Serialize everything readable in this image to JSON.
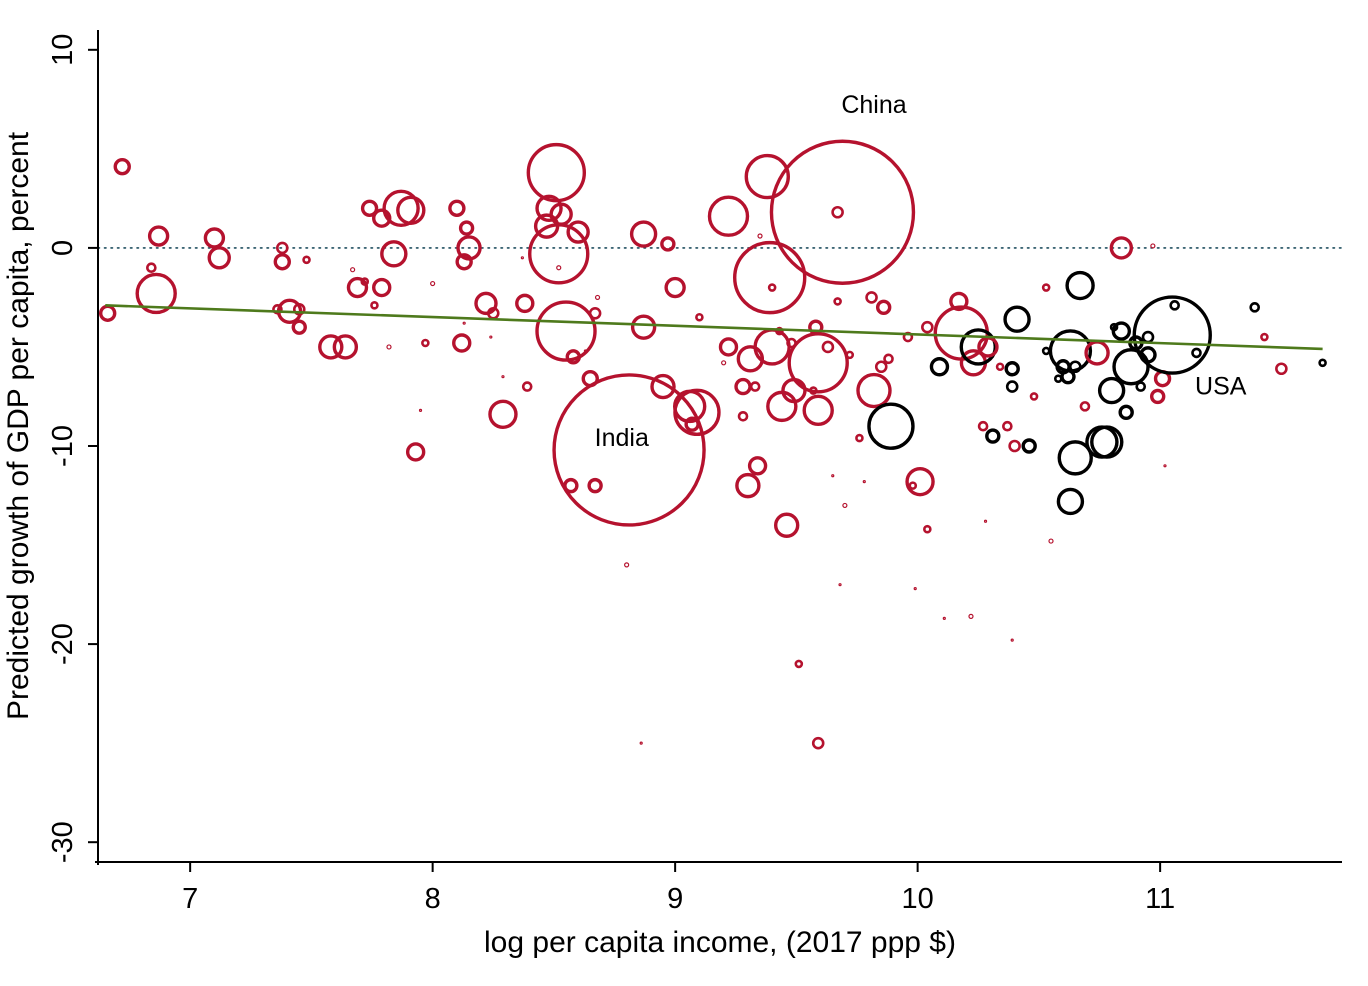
{
  "chart_data": {
    "type": "scatter",
    "xlabel": "log per capita income, (2017 ppp $)",
    "ylabel": "Predicted growth of GDP per capita, percent",
    "xlim": [
      6.62,
      11.75
    ],
    "ylim": [
      -31,
      11
    ],
    "xticks": [
      7,
      8,
      9,
      10,
      11
    ],
    "yticks": [
      10,
      0,
      -10,
      -20,
      -30
    ],
    "reference_line": {
      "y": 0,
      "style": "dotted",
      "color": "#1f4e5f"
    },
    "fit_line": {
      "color": "#4e7a1c",
      "from": {
        "x": 6.65,
        "y": -2.9
      },
      "to": {
        "x": 11.67,
        "y": -5.1
      }
    },
    "annotations": [
      {
        "text": "China",
        "x": 9.82,
        "y": 6.8
      },
      {
        "text": "India",
        "x": 8.78,
        "y": -10.0
      },
      {
        "text": "USA",
        "x": 11.25,
        "y": -7.4
      }
    ],
    "series_colors": {
      "red": "#b5122e",
      "black": "#000000"
    },
    "points": [
      {
        "x": 6.72,
        "y": 4.1,
        "s": 7,
        "c": "red"
      },
      {
        "x": 6.66,
        "y": -3.3,
        "s": 7,
        "c": "red"
      },
      {
        "x": 6.84,
        "y": -1.0,
        "s": 4,
        "c": "red"
      },
      {
        "x": 6.87,
        "y": 0.6,
        "s": 9,
        "c": "red"
      },
      {
        "x": 6.86,
        "y": -2.3,
        "s": 19,
        "c": "red"
      },
      {
        "x": 7.1,
        "y": 0.5,
        "s": 9,
        "c": "red"
      },
      {
        "x": 7.12,
        "y": -0.5,
        "s": 10,
        "c": "red"
      },
      {
        "x": 7.36,
        "y": -3.1,
        "s": 4,
        "c": "red"
      },
      {
        "x": 7.38,
        "y": 0.0,
        "s": 5,
        "c": "red"
      },
      {
        "x": 7.38,
        "y": -0.7,
        "s": 7,
        "c": "red"
      },
      {
        "x": 7.41,
        "y": -3.2,
        "s": 11,
        "c": "red"
      },
      {
        "x": 7.45,
        "y": -3.1,
        "s": 5,
        "c": "red"
      },
      {
        "x": 7.45,
        "y": -4.0,
        "s": 6,
        "c": "red"
      },
      {
        "x": 7.48,
        "y": -0.6,
        "s": 3,
        "c": "red"
      },
      {
        "x": 7.58,
        "y": -5.0,
        "s": 11,
        "c": "red"
      },
      {
        "x": 7.64,
        "y": -5.0,
        "s": 11,
        "c": "red"
      },
      {
        "x": 7.67,
        "y": -1.1,
        "s": 2,
        "c": "red"
      },
      {
        "x": 7.69,
        "y": -2.0,
        "s": 9,
        "c": "red"
      },
      {
        "x": 7.72,
        "y": -1.7,
        "s": 3,
        "c": "red"
      },
      {
        "x": 7.74,
        "y": 2.0,
        "s": 7,
        "c": "red"
      },
      {
        "x": 7.76,
        "y": -2.9,
        "s": 3,
        "c": "red"
      },
      {
        "x": 7.79,
        "y": 1.5,
        "s": 8,
        "c": "red"
      },
      {
        "x": 7.79,
        "y": -2.0,
        "s": 8,
        "c": "red"
      },
      {
        "x": 7.82,
        "y": -5.0,
        "s": 2,
        "c": "red"
      },
      {
        "x": 7.84,
        "y": -0.3,
        "s": 12,
        "c": "red"
      },
      {
        "x": 7.87,
        "y": 2.0,
        "s": 17,
        "c": "red"
      },
      {
        "x": 7.91,
        "y": 1.9,
        "s": 13,
        "c": "red"
      },
      {
        "x": 7.93,
        "y": -10.3,
        "s": 8,
        "c": "red"
      },
      {
        "x": 7.95,
        "y": -8.2,
        "s": 1,
        "c": "red"
      },
      {
        "x": 7.97,
        "y": -4.8,
        "s": 3,
        "c": "red"
      },
      {
        "x": 8.0,
        "y": -1.8,
        "s": 2,
        "c": "red"
      },
      {
        "x": 8.1,
        "y": 2.0,
        "s": 7,
        "c": "red"
      },
      {
        "x": 8.12,
        "y": -4.8,
        "s": 8,
        "c": "red"
      },
      {
        "x": 8.13,
        "y": -0.7,
        "s": 7,
        "c": "red"
      },
      {
        "x": 8.13,
        "y": -3.8,
        "s": 1,
        "c": "red"
      },
      {
        "x": 8.14,
        "y": 1.0,
        "s": 6,
        "c": "red"
      },
      {
        "x": 8.15,
        "y": 0.0,
        "s": 11,
        "c": "red"
      },
      {
        "x": 8.22,
        "y": -2.8,
        "s": 10,
        "c": "red"
      },
      {
        "x": 8.24,
        "y": -4.5,
        "s": 1,
        "c": "red"
      },
      {
        "x": 8.25,
        "y": -3.3,
        "s": 5,
        "c": "red"
      },
      {
        "x": 8.29,
        "y": -8.4,
        "s": 13,
        "c": "red"
      },
      {
        "x": 8.29,
        "y": -6.5,
        "s": 1,
        "c": "red"
      },
      {
        "x": 8.37,
        "y": -0.5,
        "s": 1,
        "c": "red"
      },
      {
        "x": 8.38,
        "y": -2.8,
        "s": 8,
        "c": "red"
      },
      {
        "x": 8.39,
        "y": -7.0,
        "s": 4,
        "c": "red"
      },
      {
        "x": 8.47,
        "y": 1.1,
        "s": 11,
        "c": "red"
      },
      {
        "x": 8.48,
        "y": 2.0,
        "s": 12,
        "c": "red"
      },
      {
        "x": 8.51,
        "y": 3.8,
        "s": 28,
        "c": "red"
      },
      {
        "x": 8.52,
        "y": -1.0,
        "s": 2,
        "c": "red"
      },
      {
        "x": 8.52,
        "y": -0.3,
        "s": 29,
        "c": "red"
      },
      {
        "x": 8.53,
        "y": 1.7,
        "s": 10,
        "c": "red"
      },
      {
        "x": 8.55,
        "y": -4.2,
        "s": 29,
        "c": "red"
      },
      {
        "x": 8.57,
        "y": -12.0,
        "s": 6,
        "c": "red"
      },
      {
        "x": 8.58,
        "y": -5.5,
        "s": 6,
        "c": "red"
      },
      {
        "x": 8.6,
        "y": 0.8,
        "s": 10,
        "c": "red"
      },
      {
        "x": 8.63,
        "y": -5.2,
        "s": 1,
        "c": "red"
      },
      {
        "x": 8.65,
        "y": -6.6,
        "s": 7,
        "c": "red"
      },
      {
        "x": 8.67,
        "y": -3.3,
        "s": 5,
        "c": "red"
      },
      {
        "x": 8.67,
        "y": -12.0,
        "s": 6,
        "c": "red"
      },
      {
        "x": 8.68,
        "y": -2.5,
        "s": 2,
        "c": "red"
      },
      {
        "x": 8.81,
        "y": -10.2,
        "s": 75,
        "c": "red"
      },
      {
        "x": 8.8,
        "y": -16.0,
        "s": 2,
        "c": "red"
      },
      {
        "x": 8.86,
        "y": -25.0,
        "s": 1,
        "c": "red"
      },
      {
        "x": 8.87,
        "y": 0.7,
        "s": 12,
        "c": "red"
      },
      {
        "x": 8.87,
        "y": -4.0,
        "s": 11,
        "c": "red"
      },
      {
        "x": 8.95,
        "y": -7.0,
        "s": 11,
        "c": "red"
      },
      {
        "x": 8.97,
        "y": 0.2,
        "s": 6,
        "c": "red"
      },
      {
        "x": 9.0,
        "y": -2.0,
        "s": 9,
        "c": "red"
      },
      {
        "x": 9.06,
        "y": -8.0,
        "s": 15,
        "c": "red"
      },
      {
        "x": 9.07,
        "y": -8.9,
        "s": 6,
        "c": "red"
      },
      {
        "x": 9.09,
        "y": -8.3,
        "s": 22,
        "c": "red"
      },
      {
        "x": 9.1,
        "y": -3.5,
        "s": 3,
        "c": "red"
      },
      {
        "x": 9.22,
        "y": 1.6,
        "s": 19,
        "c": "red"
      },
      {
        "x": 9.22,
        "y": -5.0,
        "s": 8,
        "c": "red"
      },
      {
        "x": 9.2,
        "y": -5.8,
        "s": 2,
        "c": "red"
      },
      {
        "x": 9.28,
        "y": -7.0,
        "s": 7,
        "c": "red"
      },
      {
        "x": 9.28,
        "y": -8.5,
        "s": 4,
        "c": "red"
      },
      {
        "x": 9.3,
        "y": -12.0,
        "s": 11,
        "c": "red"
      },
      {
        "x": 9.31,
        "y": -5.6,
        "s": 12,
        "c": "red"
      },
      {
        "x": 9.33,
        "y": -7.0,
        "s": 4,
        "c": "red"
      },
      {
        "x": 9.34,
        "y": -11.0,
        "s": 8,
        "c": "red"
      },
      {
        "x": 9.35,
        "y": 0.6,
        "s": 2,
        "c": "red"
      },
      {
        "x": 9.38,
        "y": 3.6,
        "s": 21,
        "c": "red"
      },
      {
        "x": 9.39,
        "y": -1.5,
        "s": 35,
        "c": "red"
      },
      {
        "x": 9.4,
        "y": -2.0,
        "s": 3,
        "c": "red"
      },
      {
        "x": 9.4,
        "y": -5.0,
        "s": 17,
        "c": "red"
      },
      {
        "x": 9.43,
        "y": -4.2,
        "s": 3,
        "c": "red"
      },
      {
        "x": 9.44,
        "y": -8.0,
        "s": 14,
        "c": "red"
      },
      {
        "x": 9.46,
        "y": -14.0,
        "s": 11,
        "c": "red"
      },
      {
        "x": 9.48,
        "y": -4.8,
        "s": 4,
        "c": "red"
      },
      {
        "x": 9.49,
        "y": -7.2,
        "s": 11,
        "c": "red"
      },
      {
        "x": 9.51,
        "y": -21.0,
        "s": 3,
        "c": "red"
      },
      {
        "x": 9.57,
        "y": -7.2,
        "s": 3,
        "c": "red"
      },
      {
        "x": 9.58,
        "y": -4.0,
        "s": 6,
        "c": "red"
      },
      {
        "x": 9.59,
        "y": -5.8,
        "s": 29,
        "c": "red"
      },
      {
        "x": 9.59,
        "y": -8.2,
        "s": 14,
        "c": "red"
      },
      {
        "x": 9.59,
        "y": -25.0,
        "s": 5,
        "c": "red"
      },
      {
        "x": 9.63,
        "y": -5.0,
        "s": 5,
        "c": "red"
      },
      {
        "x": 9.65,
        "y": -11.5,
        "s": 1,
        "c": "red"
      },
      {
        "x": 9.67,
        "y": -2.7,
        "s": 3,
        "c": "red"
      },
      {
        "x": 9.67,
        "y": 1.8,
        "s": 5,
        "c": "red"
      },
      {
        "x": 9.68,
        "y": -17.0,
        "s": 1,
        "c": "red"
      },
      {
        "x": 9.7,
        "y": -13.0,
        "s": 2,
        "c": "red"
      },
      {
        "x": 9.69,
        "y": 1.8,
        "s": 71,
        "c": "red"
      },
      {
        "x": 9.72,
        "y": -5.4,
        "s": 3,
        "c": "red"
      },
      {
        "x": 9.76,
        "y": -9.6,
        "s": 3,
        "c": "red"
      },
      {
        "x": 9.78,
        "y": -11.8,
        "s": 1,
        "c": "red"
      },
      {
        "x": 9.81,
        "y": -2.5,
        "s": 5,
        "c": "red"
      },
      {
        "x": 9.82,
        "y": -7.2,
        "s": 16,
        "c": "red"
      },
      {
        "x": 9.85,
        "y": -6.0,
        "s": 5,
        "c": "red"
      },
      {
        "x": 9.86,
        "y": -3.0,
        "s": 6,
        "c": "red"
      },
      {
        "x": 9.88,
        "y": -5.6,
        "s": 4,
        "c": "red"
      },
      {
        "x": 9.89,
        "y": -9.0,
        "s": 22,
        "black": true,
        "c": "black"
      },
      {
        "x": 9.96,
        "y": -4.5,
        "s": 4,
        "c": "red"
      },
      {
        "x": 9.98,
        "y": -12.0,
        "s": 3,
        "c": "red"
      },
      {
        "x": 9.99,
        "y": -17.2,
        "s": 1,
        "c": "red"
      },
      {
        "x": 10.01,
        "y": -11.8,
        "s": 13,
        "c": "red"
      },
      {
        "x": 10.04,
        "y": -4.0,
        "s": 5,
        "c": "red"
      },
      {
        "x": 10.04,
        "y": -14.2,
        "s": 3,
        "c": "red"
      },
      {
        "x": 10.09,
        "y": -6.0,
        "s": 8,
        "c": "black"
      },
      {
        "x": 10.11,
        "y": -18.7,
        "s": 1,
        "c": "red"
      },
      {
        "x": 10.17,
        "y": -2.7,
        "s": 8,
        "c": "red"
      },
      {
        "x": 10.18,
        "y": -4.3,
        "s": 26,
        "c": "red"
      },
      {
        "x": 10.22,
        "y": -18.6,
        "s": 2,
        "c": "red"
      },
      {
        "x": 10.23,
        "y": -5.8,
        "s": 12,
        "c": "red"
      },
      {
        "x": 10.25,
        "y": -5.0,
        "s": 17,
        "c": "black"
      },
      {
        "x": 10.27,
        "y": -9.0,
        "s": 4,
        "c": "red"
      },
      {
        "x": 10.28,
        "y": -13.8,
        "s": 1,
        "c": "red"
      },
      {
        "x": 10.29,
        "y": -5.0,
        "s": 9,
        "c": "red"
      },
      {
        "x": 10.31,
        "y": -9.5,
        "s": 6,
        "c": "black"
      },
      {
        "x": 10.34,
        "y": -6.0,
        "s": 3,
        "c": "red"
      },
      {
        "x": 10.37,
        "y": -9.0,
        "s": 4,
        "c": "red"
      },
      {
        "x": 10.39,
        "y": -6.1,
        "s": 6,
        "c": "black"
      },
      {
        "x": 10.39,
        "y": -7.0,
        "s": 5,
        "c": "black"
      },
      {
        "x": 10.4,
        "y": -10.0,
        "s": 5,
        "c": "red"
      },
      {
        "x": 10.39,
        "y": -19.8,
        "s": 1,
        "c": "red"
      },
      {
        "x": 10.41,
        "y": -3.6,
        "s": 12,
        "c": "black"
      },
      {
        "x": 10.46,
        "y": -10.0,
        "s": 6,
        "c": "black"
      },
      {
        "x": 10.48,
        "y": -7.5,
        "s": 3,
        "c": "red"
      },
      {
        "x": 10.53,
        "y": -5.2,
        "s": 3,
        "c": "black"
      },
      {
        "x": 10.53,
        "y": -2.0,
        "s": 3,
        "c": "red"
      },
      {
        "x": 10.55,
        "y": -14.8,
        "s": 2,
        "c": "red"
      },
      {
        "x": 10.58,
        "y": -6.6,
        "s": 3,
        "c": "black"
      },
      {
        "x": 10.6,
        "y": -6.0,
        "s": 6,
        "c": "black"
      },
      {
        "x": 10.62,
        "y": -6.5,
        "s": 6,
        "c": "black"
      },
      {
        "x": 10.63,
        "y": -5.2,
        "s": 20,
        "c": "black"
      },
      {
        "x": 10.63,
        "y": -12.8,
        "s": 12,
        "c": "black"
      },
      {
        "x": 10.65,
        "y": -10.6,
        "s": 16,
        "c": "black"
      },
      {
        "x": 10.65,
        "y": -6.0,
        "s": 5,
        "c": "black"
      },
      {
        "x": 10.67,
        "y": -1.9,
        "s": 13,
        "c": "black"
      },
      {
        "x": 10.69,
        "y": -8.0,
        "s": 4,
        "c": "red"
      },
      {
        "x": 10.74,
        "y": -5.3,
        "s": 11,
        "c": "red"
      },
      {
        "x": 10.76,
        "y": -9.8,
        "s": 15,
        "c": "black"
      },
      {
        "x": 10.78,
        "y": -9.8,
        "s": 15,
        "c": "black"
      },
      {
        "x": 10.8,
        "y": -7.2,
        "s": 12,
        "c": "black"
      },
      {
        "x": 10.81,
        "y": -4.0,
        "s": 3,
        "c": "black"
      },
      {
        "x": 10.84,
        "y": 0.0,
        "s": 10,
        "c": "red"
      },
      {
        "x": 10.84,
        "y": -4.2,
        "s": 8,
        "c": "black"
      },
      {
        "x": 10.86,
        "y": -8.3,
        "s": 6,
        "c": "black"
      },
      {
        "x": 10.88,
        "y": -6.0,
        "s": 17,
        "c": "black"
      },
      {
        "x": 10.9,
        "y": -4.8,
        "s": 6,
        "c": "black"
      },
      {
        "x": 10.92,
        "y": -7.0,
        "s": 4,
        "c": "black"
      },
      {
        "x": 10.95,
        "y": -4.5,
        "s": 5,
        "c": "black"
      },
      {
        "x": 10.95,
        "y": -5.4,
        "s": 7,
        "c": "black"
      },
      {
        "x": 10.97,
        "y": 0.1,
        "s": 2,
        "c": "red"
      },
      {
        "x": 10.99,
        "y": -7.5,
        "s": 6,
        "c": "red"
      },
      {
        "x": 11.01,
        "y": -6.6,
        "s": 7,
        "c": "red"
      },
      {
        "x": 11.02,
        "y": -11.0,
        "s": 1,
        "c": "red"
      },
      {
        "x": 11.05,
        "y": -4.4,
        "s": 38,
        "c": "black"
      },
      {
        "x": 11.06,
        "y": -2.9,
        "s": 4,
        "c": "black"
      },
      {
        "x": 11.15,
        "y": -5.3,
        "s": 4,
        "c": "black"
      },
      {
        "x": 11.39,
        "y": -3.0,
        "s": 4,
        "c": "black"
      },
      {
        "x": 11.43,
        "y": -4.5,
        "s": 3,
        "c": "red"
      },
      {
        "x": 11.5,
        "y": -6.1,
        "s": 5,
        "c": "red"
      },
      {
        "x": 11.67,
        "y": -5.8,
        "s": 3,
        "c": "black"
      }
    ]
  }
}
